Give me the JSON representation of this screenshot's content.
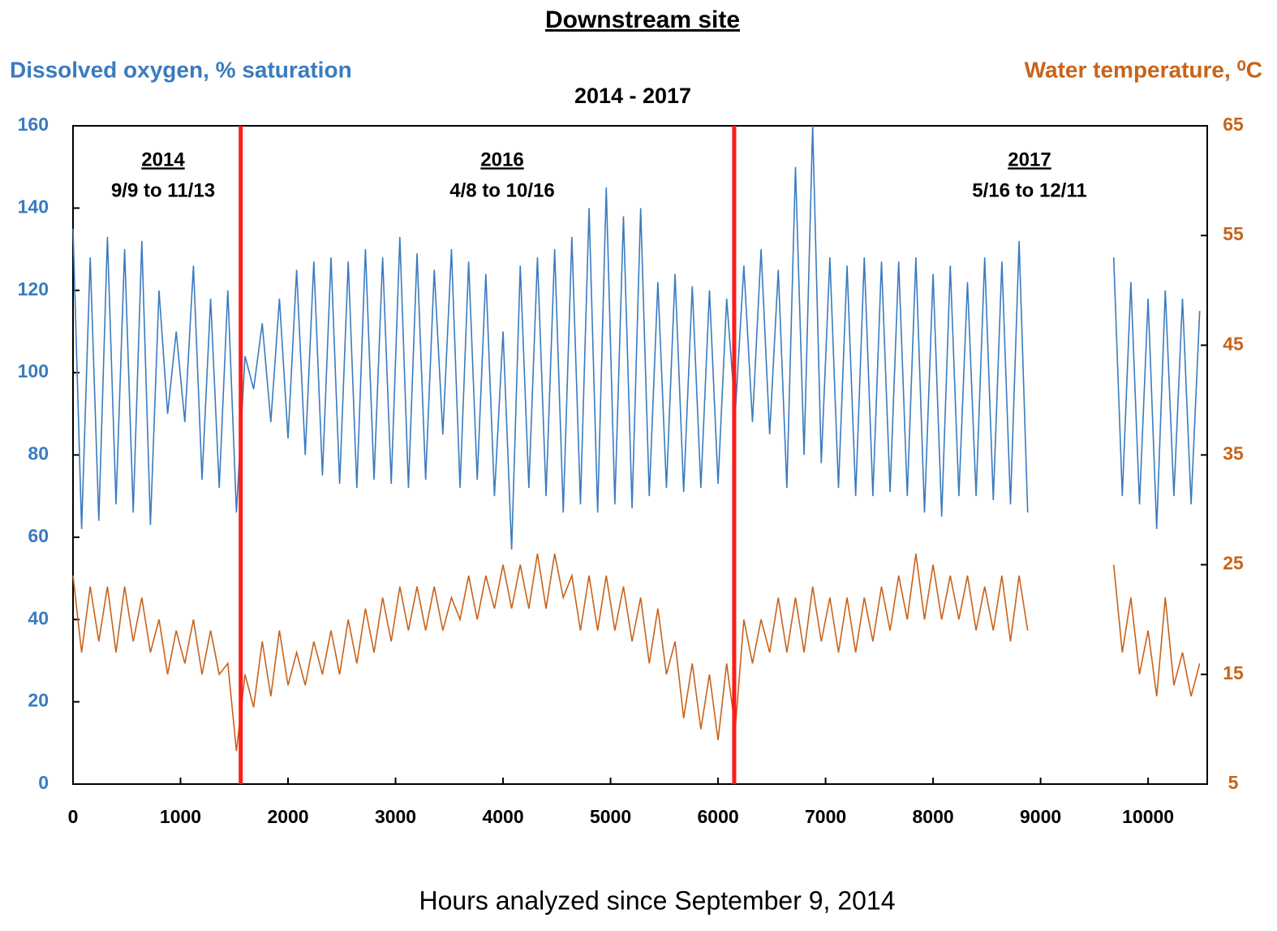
{
  "chart_data": {
    "type": "line",
    "title": "Downstream site",
    "subtitle": "2014 - 2017",
    "x_label": "Hours analyzed since September 9, 2014",
    "y_label": "Dissolved oxygen, % saturation",
    "y2_label": "Water temperature, ⁰C",
    "xlim": [
      0,
      10550
    ],
    "xticks": [
      0,
      1000,
      2000,
      3000,
      4000,
      5000,
      6000,
      7000,
      8000,
      9000,
      10000
    ],
    "ylim": [
      0,
      160
    ],
    "yticks": [
      0,
      20,
      40,
      60,
      80,
      100,
      120,
      140,
      160
    ],
    "y2lim": [
      5,
      65
    ],
    "y2ticks": [
      5,
      15,
      25,
      35,
      45,
      55,
      65
    ],
    "dividers": [
      1560,
      6150
    ],
    "divider_color": "#ff1a1a",
    "annotations": [
      {
        "year": "2014",
        "dates": "9/9 to 11/13"
      },
      {
        "year": "2016",
        "dates": "4/8 to 10/16"
      },
      {
        "year": "2017",
        "dates": "5/16 to 12/11"
      }
    ],
    "x": [
      0,
      80,
      160,
      240,
      320,
      400,
      480,
      560,
      640,
      720,
      800,
      880,
      960,
      1040,
      1120,
      1200,
      1280,
      1360,
      1440,
      1520,
      1600,
      1680,
      1760,
      1840,
      1920,
      2000,
      2080,
      2160,
      2240,
      2320,
      2400,
      2480,
      2560,
      2640,
      2720,
      2800,
      2880,
      2960,
      3040,
      3120,
      3200,
      3280,
      3360,
      3440,
      3520,
      3600,
      3680,
      3760,
      3840,
      3920,
      4000,
      4080,
      4160,
      4240,
      4320,
      4400,
      4480,
      4560,
      4640,
      4720,
      4800,
      4880,
      4960,
      5040,
      5120,
      5200,
      5280,
      5360,
      5440,
      5520,
      5600,
      5680,
      5760,
      5840,
      5920,
      6000,
      6080,
      6160,
      6240,
      6320,
      6400,
      6480,
      6560,
      6640,
      6720,
      6800,
      6880,
      6960,
      7040,
      7120,
      7200,
      7280,
      7360,
      7440,
      7520,
      7600,
      7680,
      7760,
      7840,
      7920,
      8000,
      8080,
      8160,
      8240,
      8320,
      8400,
      8480,
      8560,
      8640,
      8720,
      8800,
      8880,
      8960,
      9040,
      9120,
      9200,
      9280,
      9360,
      9440,
      9520,
      9600,
      9680,
      9760,
      9840,
      9920,
      10000,
      10080,
      10160,
      10240,
      10320,
      10400,
      10480
    ],
    "series": [
      {
        "name": "Dissolved oxygen",
        "color": "#3a7bbf",
        "axis": "y",
        "values": [
          135,
          62,
          128,
          64,
          133,
          68,
          130,
          66,
          132,
          63,
          120,
          90,
          110,
          88,
          126,
          74,
          118,
          72,
          120,
          66,
          104,
          96,
          112,
          88,
          118,
          84,
          125,
          80,
          127,
          75,
          128,
          73,
          127,
          72,
          130,
          74,
          128,
          73,
          133,
          72,
          129,
          74,
          125,
          85,
          130,
          72,
          127,
          74,
          124,
          70,
          110,
          57,
          126,
          72,
          128,
          70,
          130,
          66,
          133,
          68,
          140,
          66,
          145,
          68,
          138,
          67,
          140,
          70,
          122,
          72,
          124,
          71,
          121,
          72,
          120,
          73,
          118,
          90,
          126,
          88,
          130,
          85,
          125,
          72,
          150,
          80,
          160,
          78,
          128,
          72,
          126,
          70,
          128,
          70,
          127,
          71,
          127,
          70,
          128,
          66,
          124,
          65,
          126,
          70,
          122,
          70,
          128,
          69,
          127,
          68,
          132,
          66,
          null,
          null,
          null,
          null,
          null,
          null,
          null,
          null,
          null,
          128,
          70,
          122,
          68,
          118,
          62,
          120,
          70,
          118,
          68,
          115
        ]
      },
      {
        "name": "Water temperature",
        "color": "#c8631a",
        "axis": "y2",
        "values": [
          24,
          17,
          23,
          18,
          23,
          17,
          23,
          18,
          22,
          17,
          20,
          15,
          19,
          16,
          20,
          15,
          19,
          15,
          16,
          8,
          15,
          12,
          18,
          13,
          19,
          14,
          17,
          14,
          18,
          15,
          19,
          15,
          20,
          16,
          21,
          17,
          22,
          18,
          23,
          19,
          23,
          19,
          23,
          19,
          22,
          20,
          24,
          20,
          24,
          21,
          25,
          21,
          25,
          21,
          26,
          21,
          26,
          22,
          24,
          19,
          24,
          19,
          24,
          19,
          23,
          18,
          22,
          16,
          21,
          15,
          18,
          11,
          16,
          10,
          15,
          9,
          16,
          10,
          20,
          16,
          20,
          17,
          22,
          17,
          22,
          17,
          23,
          18,
          22,
          17,
          22,
          17,
          22,
          18,
          23,
          19,
          24,
          20,
          26,
          20,
          25,
          20,
          24,
          20,
          24,
          19,
          23,
          19,
          24,
          18,
          24,
          19,
          null,
          null,
          null,
          null,
          null,
          null,
          null,
          null,
          null,
          25,
          17,
          22,
          15,
          19,
          13,
          22,
          14,
          17,
          13,
          16
        ]
      }
    ]
  }
}
